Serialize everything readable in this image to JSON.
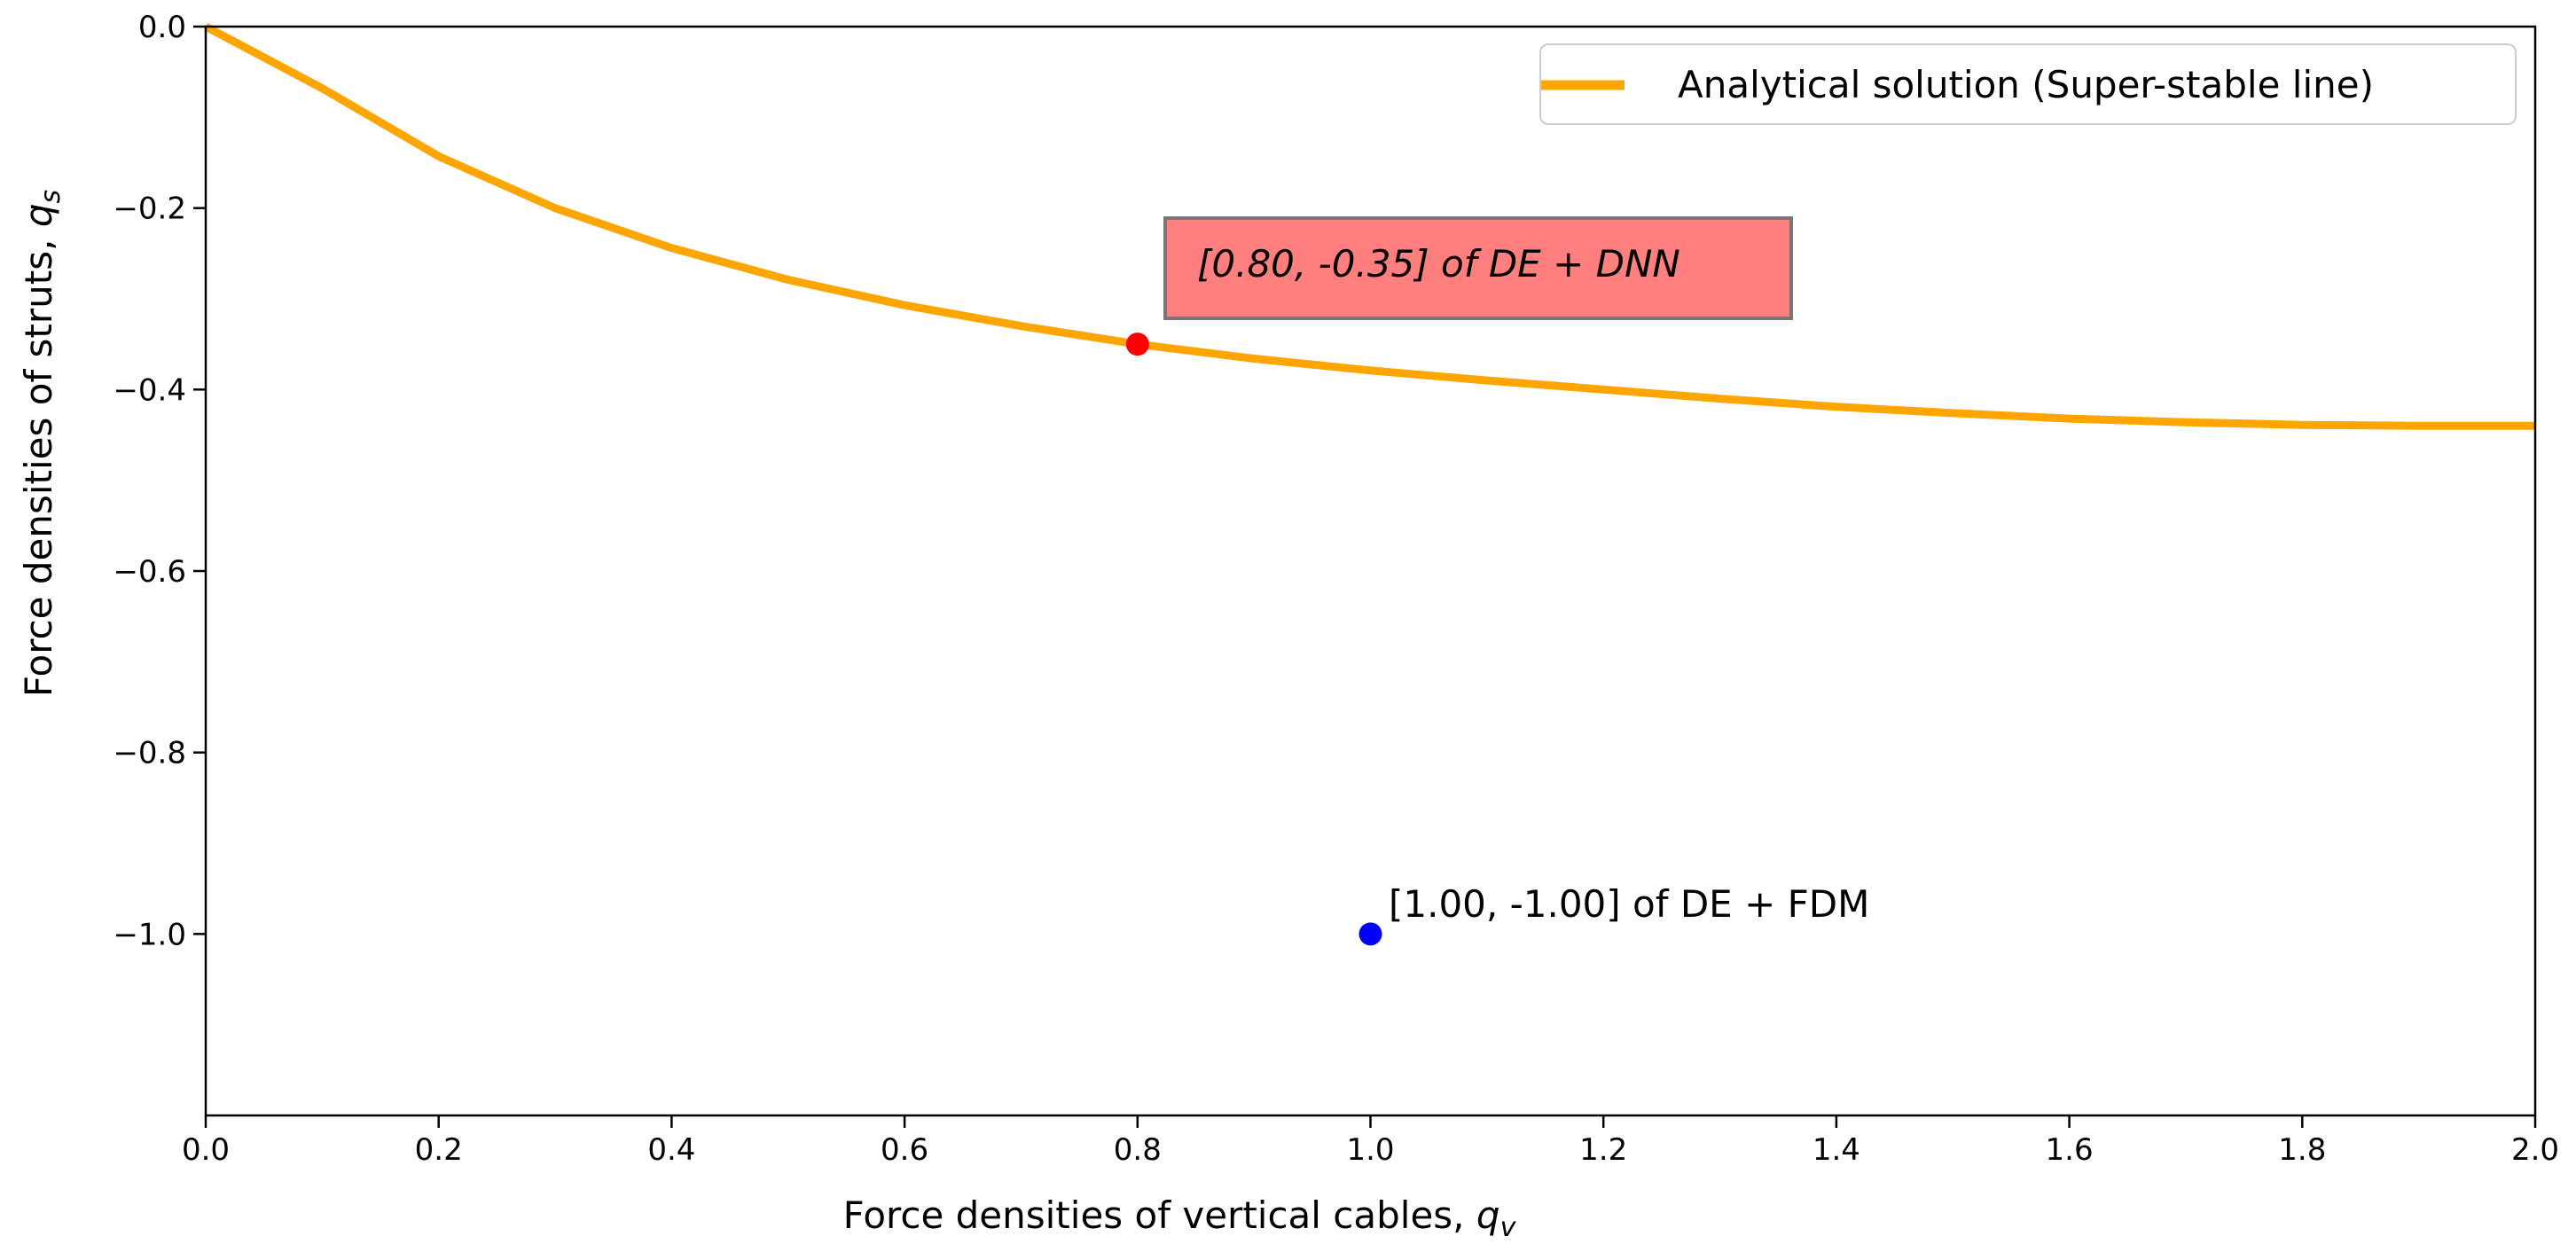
{
  "chart_data": {
    "type": "line",
    "xlabel": "Force densities of vertical cables, ",
    "xlabel_symbol": "q",
    "xlabel_subscript": "v",
    "ylabel": "Force densities of struts, ",
    "ylabel_symbol": "q",
    "ylabel_subscript": "s",
    "xlim": [
      0.0,
      2.0
    ],
    "ylim": [
      -1.2,
      0.0
    ],
    "xticks": [
      "0.0",
      "0.2",
      "0.4",
      "0.6",
      "0.8",
      "1.0",
      "1.2",
      "1.4",
      "1.6",
      "1.8",
      "2.0"
    ],
    "xtick_values": [
      0.0,
      0.2,
      0.4,
      0.6,
      0.8,
      1.0,
      1.2,
      1.4,
      1.6,
      1.8,
      2.0
    ],
    "yticks": [
      "0.0",
      "−0.2",
      "−0.4",
      "−0.6",
      "−0.8",
      "−1.0"
    ],
    "ytick_values": [
      0.0,
      -0.2,
      -0.4,
      -0.6,
      -0.8,
      -1.0
    ],
    "grid": false,
    "legend_position": "top-right",
    "series": [
      {
        "name": "Analytical solution (Super-stable line)",
        "color": "#FFA500",
        "x": [
          0.0,
          0.1,
          0.2,
          0.3,
          0.4,
          0.5,
          0.6,
          0.7,
          0.8,
          0.9,
          1.0,
          1.1,
          1.2,
          1.3,
          1.4,
          1.5,
          1.6,
          1.7,
          1.8,
          1.9,
          2.0
        ],
        "y": [
          0.0,
          -0.068,
          -0.143,
          -0.2,
          -0.244,
          -0.279,
          -0.307,
          -0.33,
          -0.35,
          -0.366,
          -0.379,
          -0.39,
          -0.4,
          -0.41,
          -0.419,
          -0.426,
          -0.432,
          -0.436,
          -0.439,
          -0.44,
          -0.44
        ]
      }
    ],
    "points": [
      {
        "x": 0.8,
        "y": -0.35,
        "color": "#FF0000",
        "label": "[0.80, -0.35] of DE + DNN",
        "label_style": "box"
      },
      {
        "x": 1.0,
        "y": -1.0,
        "color": "#0000FF",
        "label": "[1.00, -1.00] of DE + FDM",
        "label_style": "plain"
      }
    ],
    "annotation_box_color": "#FF7F7F"
  }
}
